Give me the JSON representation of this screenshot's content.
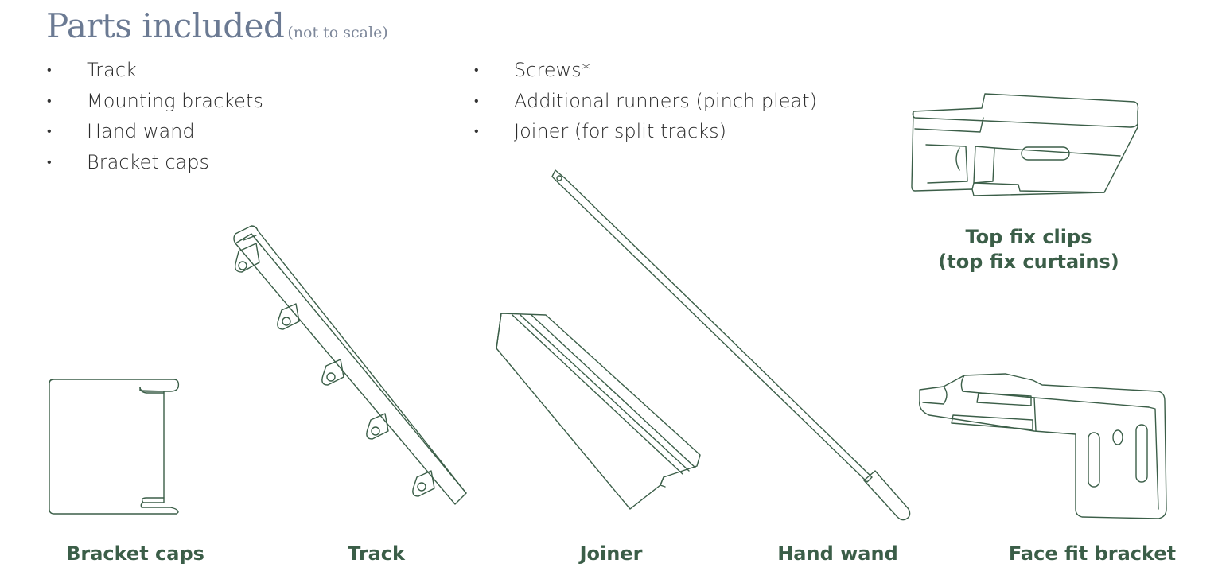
{
  "heading": {
    "title": "Parts included",
    "subtitle": "(not to scale)"
  },
  "parts_list": {
    "column1": [
      "Track",
      "Mounting brackets",
      "Hand wand",
      "Bracket caps"
    ],
    "column2": [
      "Screws*",
      "Additional runners (pinch pleat)",
      "Joiner (for split tracks)"
    ]
  },
  "illustrations": {
    "top_fix_clips": {
      "label_line1": "Top fix clips",
      "label_line2": "(top fix curtains)"
    },
    "bracket_caps": {
      "label": "Bracket caps"
    },
    "track": {
      "label": "Track"
    },
    "joiner": {
      "label": "Joiner"
    },
    "hand_wand": {
      "label": "Hand wand"
    },
    "face_fit_bracket": {
      "label": "Face fit bracket"
    }
  },
  "colors": {
    "title": "#6b7a93",
    "label": "#3b5e48",
    "line_art": "#3b5e48",
    "body_text": "#2b2b2b"
  }
}
